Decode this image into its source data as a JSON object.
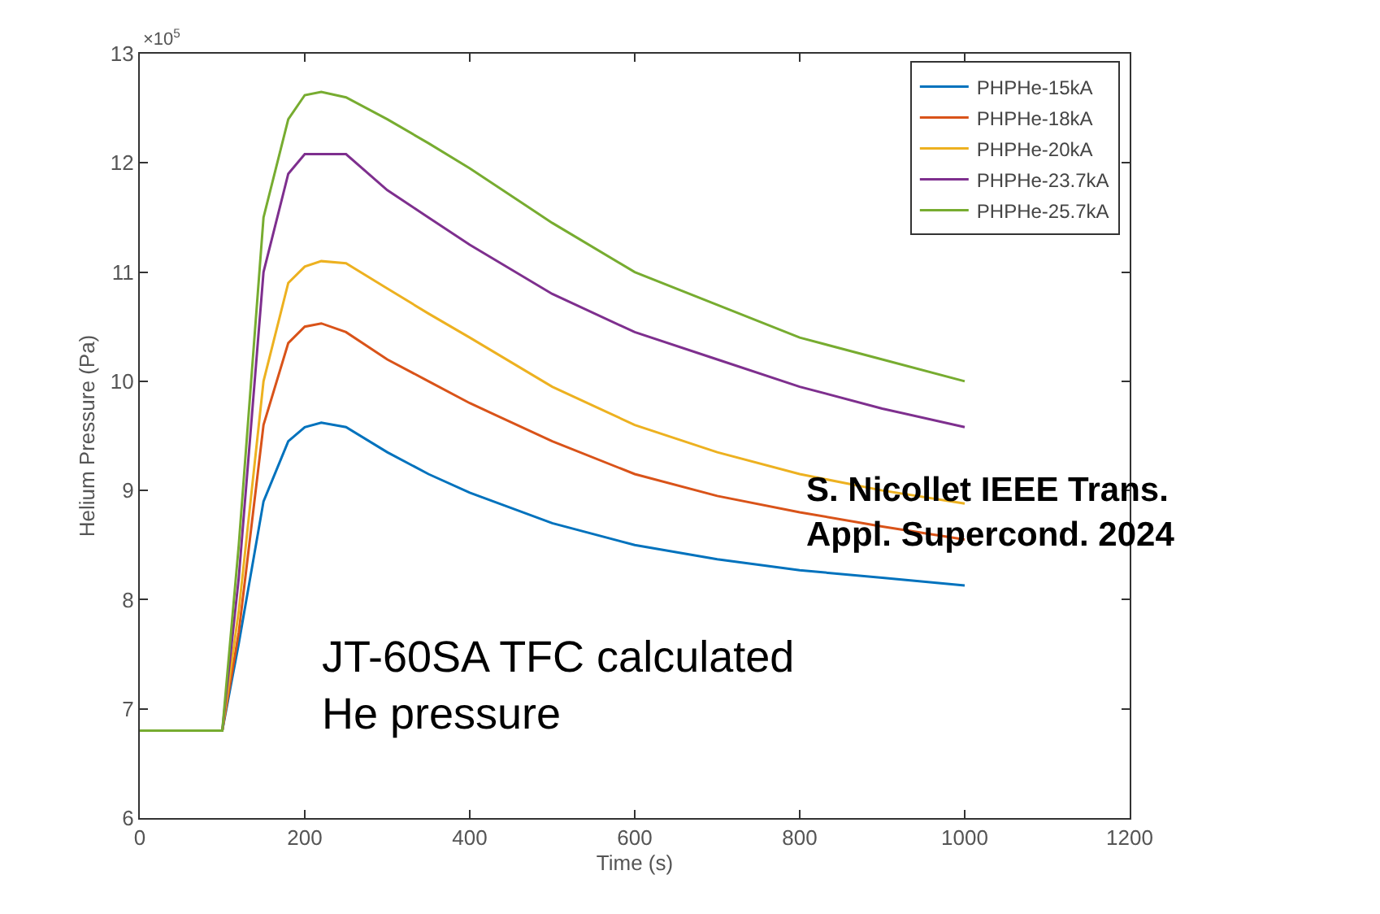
{
  "chart_data": {
    "type": "line",
    "xlabel": "Time (s)",
    "ylabel": "Helium Pressure (Pa)",
    "x": [
      0,
      100,
      120,
      150,
      180,
      200,
      220,
      250,
      300,
      350,
      400,
      500,
      600,
      700,
      800,
      900,
      1000
    ],
    "series": [
      {
        "name": "PHPHe-15kA",
        "color": "#0072bd",
        "values": [
          6.8,
          6.8,
          7.6,
          8.9,
          9.45,
          9.58,
          9.62,
          9.58,
          9.35,
          9.15,
          8.98,
          8.7,
          8.5,
          8.37,
          8.27,
          8.2,
          8.13
        ]
      },
      {
        "name": "PHPHe-18kA",
        "color": "#d95319",
        "values": [
          6.8,
          6.8,
          7.7,
          9.6,
          10.35,
          10.5,
          10.53,
          10.45,
          10.2,
          10.0,
          9.8,
          9.45,
          9.15,
          8.95,
          8.8,
          8.67,
          8.55
        ]
      },
      {
        "name": "PHPHe-20kA",
        "color": "#edb120",
        "values": [
          6.8,
          6.8,
          7.9,
          10.0,
          10.9,
          11.05,
          11.1,
          11.08,
          10.85,
          10.62,
          10.4,
          9.95,
          9.6,
          9.35,
          9.15,
          9.0,
          8.88
        ]
      },
      {
        "name": "PHPHe-23.7kA",
        "color": "#7e2f8e",
        "values": [
          6.8,
          6.8,
          8.2,
          11.0,
          11.9,
          12.08,
          12.08,
          12.08,
          11.75,
          11.5,
          11.25,
          10.8,
          10.45,
          10.2,
          9.95,
          9.75,
          9.58
        ]
      },
      {
        "name": "PHPHe-25.7kA",
        "color": "#77ac30",
        "values": [
          6.8,
          6.8,
          8.5,
          11.5,
          12.4,
          12.62,
          12.65,
          12.6,
          12.4,
          12.18,
          11.95,
          11.45,
          11.0,
          10.7,
          10.4,
          10.2,
          10.0
        ]
      }
    ],
    "xlim": [
      0,
      1200
    ],
    "xticks": [
      0,
      200,
      400,
      600,
      800,
      1000,
      1200
    ],
    "ylim": [
      6,
      13
    ],
    "yticks": [
      6,
      7,
      8,
      9,
      10,
      11,
      12,
      13
    ],
    "legend": "top right",
    "marker": "none",
    "line_style": "solid",
    "annotations": [
      "×10$^{5}$",
      "S. Nicollet IEEE Trans. Appl. Supercond. 2024",
      "JT-60SA TFC calculated He pressure"
    ]
  }
}
